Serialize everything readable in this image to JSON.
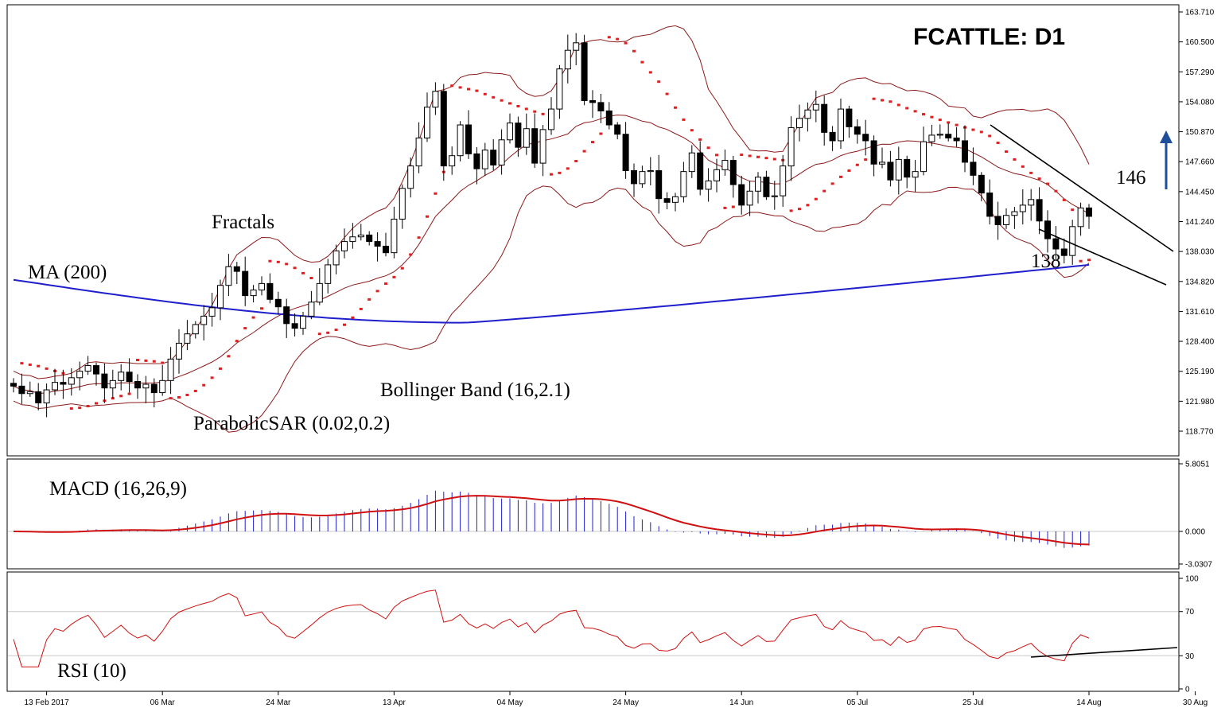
{
  "title": "FCATTLE: D1",
  "indicator_labels": {
    "ma": "MA (200)",
    "fractals": "Fractals",
    "bollinger": "Bollinger Band (16,2.1)",
    "sar": "ParabolicSAR (0.02,0.2)",
    "macd": "MACD (16,26,9)",
    "rsi": "RSI (10)"
  },
  "annotations": {
    "level_high": "146",
    "level_low": "138"
  },
  "colors": {
    "ma": "#1f1fcc",
    "sar": "#e02020",
    "bollinger": "#8b1a1a",
    "macd_hist": "#2020d0",
    "macd_signal": "#d01010",
    "rsi": "#d01010",
    "trend": "#000000",
    "arrow": "#1f4e9a",
    "fractal_up": "#22aa22",
    "fractal_down": "#d02020"
  },
  "chart_data": [
    {
      "type": "candlestick",
      "timeframe": "D1",
      "ylim": [
        117.0,
        163.9
      ],
      "y_ticks": [
        "163.710",
        "160.500",
        "157.290",
        "154.080",
        "150.870",
        "147.660",
        "144.450",
        "141.240",
        "138.030",
        "134.820",
        "131.610",
        "128.400",
        "125.190",
        "121.980",
        "118.770"
      ],
      "x_ticks": [
        "13 Feb 2017",
        "06 Mar",
        "24 Mar",
        "13 Apr",
        "04 May",
        "24 May",
        "14 Jun",
        "05 Jul",
        "25 Jul",
        "14 Aug",
        "30 Aug"
      ],
      "close": [
        123.6,
        122.8,
        123.0,
        121.8,
        123.2,
        124.0,
        123.8,
        124.5,
        125.2,
        125.8,
        124.9,
        123.4,
        124.2,
        125.1,
        124.1,
        123.4,
        123.8,
        122.9,
        124.2,
        126.5,
        128.2,
        129.2,
        130.2,
        131.1,
        132.0,
        134.4,
        136.4,
        135.9,
        133.3,
        133.9,
        134.6,
        132.9,
        132.1,
        130.3,
        129.8,
        131.1,
        132.6,
        134.6,
        136.6,
        138.1,
        139.1,
        139.6,
        139.8,
        139.1,
        138.6,
        137.9,
        141.5,
        144.8,
        147.2,
        150.2,
        153.5,
        155.2,
        147.2,
        148.3,
        151.6,
        148.5,
        146.9,
        148.9,
        147.3,
        150.0,
        151.8,
        149.2,
        151.2,
        147.5,
        151.1,
        153.3,
        157.6,
        159.6,
        160.4,
        154.2,
        154.0,
        153.1,
        151.6,
        150.6,
        146.7,
        145.3,
        146.6,
        146.7,
        143.7,
        143.3,
        143.9,
        146.6,
        148.6,
        144.7,
        145.6,
        146.8,
        147.8,
        145.2,
        143.0,
        144.5,
        146.0,
        143.9,
        144.0,
        147.2,
        151.3,
        152.3,
        153.2,
        153.8,
        150.8,
        149.9,
        153.3,
        151.4,
        150.6,
        149.9,
        147.4,
        147.6,
        145.7,
        147.9,
        146.0,
        146.6,
        149.8,
        150.5,
        150.6,
        150.2,
        149.9,
        147.6,
        146.2,
        144.3,
        141.8,
        140.9,
        141.9,
        142.3,
        143.0,
        143.6,
        141.3,
        139.4,
        138.3,
        137.6,
        140.7,
        142.7,
        141.8
      ],
      "open": [
        123.9,
        123.6,
        122.8,
        123.0,
        121.8,
        123.2,
        124.0,
        123.8,
        124.5,
        125.2,
        125.8,
        124.9,
        123.4,
        124.2,
        125.1,
        124.1,
        123.4,
        123.8,
        122.9,
        124.2,
        126.5,
        128.2,
        129.2,
        130.2,
        131.1,
        132.0,
        134.4,
        136.4,
        135.9,
        133.3,
        133.9,
        134.6,
        132.9,
        132.1,
        130.3,
        129.8,
        131.1,
        132.6,
        134.6,
        136.6,
        138.1,
        139.1,
        139.6,
        139.8,
        139.1,
        138.6,
        137.9,
        141.5,
        144.8,
        147.2,
        150.2,
        153.5,
        155.2,
        147.2,
        148.3,
        151.6,
        148.5,
        146.9,
        148.9,
        147.3,
        150.0,
        151.8,
        149.2,
        151.2,
        147.5,
        151.1,
        153.3,
        157.6,
        159.6,
        160.4,
        154.2,
        154.0,
        153.1,
        151.6,
        150.6,
        146.7,
        145.3,
        146.6,
        146.7,
        143.7,
        143.3,
        143.9,
        146.6,
        148.6,
        144.7,
        145.6,
        146.8,
        147.8,
        145.2,
        143.0,
        144.5,
        146.0,
        143.9,
        144.0,
        147.2,
        151.3,
        152.3,
        153.2,
        153.8,
        150.8,
        149.9,
        153.3,
        151.4,
        150.6,
        149.9,
        147.4,
        147.6,
        145.7,
        147.9,
        146.0,
        146.6,
        149.8,
        150.5,
        150.6,
        150.2,
        149.9,
        147.6,
        146.2,
        144.3,
        141.8,
        140.9,
        141.9,
        142.3,
        143.0,
        143.6,
        141.3,
        139.4,
        138.3,
        137.6,
        140.7,
        142.7
      ]
    },
    {
      "type": "bar+line",
      "name": "MACD (16,26,9)",
      "ylim": [
        -3.0307,
        5.8051
      ],
      "y_ticks": [
        "5.8051",
        "0.000",
        "-3.0307"
      ]
    },
    {
      "type": "line",
      "name": "RSI (10)",
      "ylim": [
        0,
        100
      ],
      "y_ticks": [
        "100",
        "70",
        "30",
        "0"
      ]
    }
  ]
}
